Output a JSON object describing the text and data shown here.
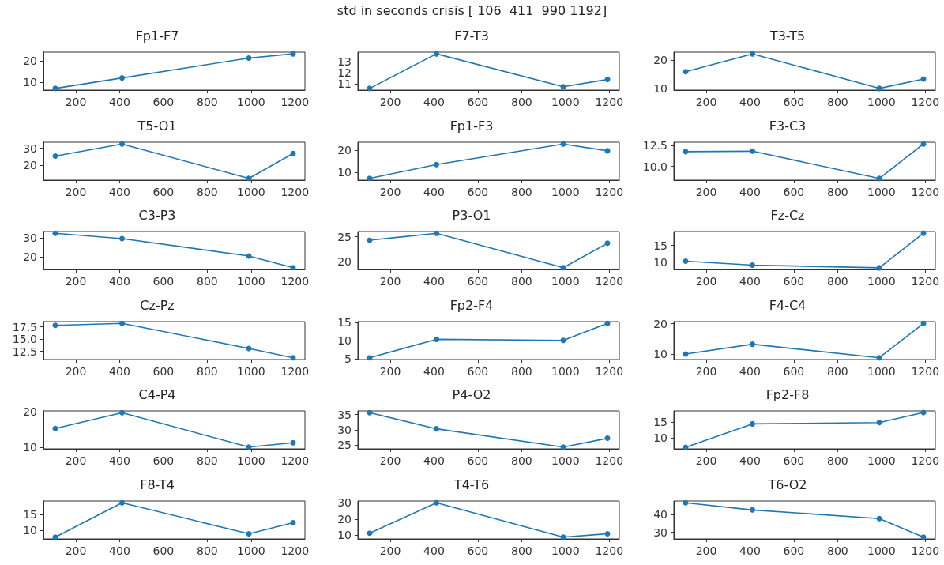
{
  "chart_data": [
    {
      "type": "line",
      "title": "Fp1-F7",
      "annotations": [
        "std in seconds crisis [ 106  411  990 1192]"
      ],
      "x": [
        106,
        411,
        990,
        1192
      ],
      "series": [
        {
          "color": "#1f77b4",
          "values": [
            7,
            12,
            21.5,
            23.5
          ]
        }
      ],
      "xlim": [
        52,
        1246
      ],
      "xticks": [
        200,
        400,
        600,
        800,
        1000,
        1200
      ],
      "ylim": [
        6.2,
        24.3
      ],
      "yticks": [
        10,
        20
      ],
      "marker": "circle",
      "grid": false
    },
    {
      "type": "line",
      "title": "F7-T3",
      "x": [
        106,
        411,
        990,
        1192
      ],
      "series": [
        {
          "color": "#1f77b4",
          "values": [
            10.6,
            13.7,
            10.75,
            11.4
          ]
        }
      ],
      "xlim": [
        52,
        1246
      ],
      "xticks": [
        200,
        400,
        600,
        800,
        1000,
        1200
      ],
      "ylim": [
        10.45,
        13.85
      ],
      "yticks": [
        11,
        12,
        13
      ],
      "marker": "circle",
      "grid": false
    },
    {
      "type": "line",
      "title": "T3-T5",
      "x": [
        106,
        411,
        990,
        1192
      ],
      "series": [
        {
          "color": "#1f77b4",
          "values": [
            16,
            22.3,
            10.1,
            13.4
          ]
        }
      ],
      "xlim": [
        52,
        1246
      ],
      "xticks": [
        200,
        400,
        600,
        800,
        1000,
        1200
      ],
      "ylim": [
        9.5,
        22.9
      ],
      "yticks": [
        10,
        20
      ],
      "marker": "circle",
      "grid": false
    },
    {
      "type": "line",
      "title": "T5-O1",
      "x": [
        106,
        411,
        990,
        1192
      ],
      "series": [
        {
          "color": "#1f77b4",
          "values": [
            25.5,
            32.5,
            12.5,
            27
          ]
        }
      ],
      "xlim": [
        52,
        1246
      ],
      "xticks": [
        200,
        400,
        600,
        800,
        1000,
        1200
      ],
      "ylim": [
        11.5,
        33.5
      ],
      "yticks": [
        20,
        30
      ],
      "marker": "circle",
      "grid": false
    },
    {
      "type": "line",
      "title": "Fp1-F3",
      "x": [
        106,
        411,
        990,
        1192
      ],
      "series": [
        {
          "color": "#1f77b4",
          "values": [
            7.2,
            13.5,
            22.8,
            19.7
          ]
        }
      ],
      "xlim": [
        52,
        1246
      ],
      "xticks": [
        200,
        400,
        600,
        800,
        1000,
        1200
      ],
      "ylim": [
        6.4,
        23.6
      ],
      "yticks": [
        10,
        20
      ],
      "marker": "circle",
      "grid": false
    },
    {
      "type": "line",
      "title": "F3-C3",
      "x": [
        106,
        411,
        990,
        1192
      ],
      "series": [
        {
          "color": "#1f77b4",
          "values": [
            11.75,
            11.8,
            8.6,
            12.65
          ]
        }
      ],
      "xlim": [
        52,
        1246
      ],
      "xticks": [
        200,
        400,
        600,
        800,
        1000,
        1200
      ],
      "ylim": [
        8.4,
        12.85
      ],
      "yticks": [
        {
          "value": 10,
          "label": "10.0"
        },
        {
          "value": 12.5,
          "label": "12.5"
        }
      ],
      "marker": "circle",
      "grid": false
    },
    {
      "type": "line",
      "title": "C3-P3",
      "x": [
        106,
        411,
        990,
        1192
      ],
      "series": [
        {
          "color": "#1f77b4",
          "values": [
            32.5,
            29.7,
            20.6,
            14.5
          ]
        }
      ],
      "xlim": [
        52,
        1246
      ],
      "xticks": [
        200,
        400,
        600,
        800,
        1000,
        1200
      ],
      "ylim": [
        13.6,
        33.4
      ],
      "yticks": [
        20,
        30
      ],
      "marker": "circle",
      "grid": false
    },
    {
      "type": "line",
      "title": "P3-O1",
      "x": [
        106,
        411,
        990,
        1192
      ],
      "series": [
        {
          "color": "#1f77b4",
          "values": [
            24.3,
            25.7,
            18.8,
            23.7
          ]
        }
      ],
      "xlim": [
        52,
        1246
      ],
      "xticks": [
        200,
        400,
        600,
        800,
        1000,
        1200
      ],
      "ylim": [
        18.45,
        26.05
      ],
      "yticks": [
        20,
        25
      ],
      "marker": "circle",
      "grid": false
    },
    {
      "type": "line",
      "title": "Fz-Cz",
      "x": [
        106,
        411,
        990,
        1192
      ],
      "series": [
        {
          "color": "#1f77b4",
          "values": [
            10.3,
            9.1,
            8.3,
            18.7
          ]
        }
      ],
      "xlim": [
        52,
        1246
      ],
      "xticks": [
        200,
        400,
        600,
        800,
        1000,
        1200
      ],
      "ylim": [
        7.8,
        19.2
      ],
      "yticks": [
        10,
        15
      ],
      "marker": "circle",
      "grid": false
    },
    {
      "type": "line",
      "title": "Cz-Pz",
      "x": [
        106,
        411,
        990,
        1192
      ],
      "series": [
        {
          "color": "#1f77b4",
          "values": [
            17.8,
            18.2,
            13.1,
            11.2
          ]
        }
      ],
      "xlim": [
        52,
        1246
      ],
      "xticks": [
        200,
        400,
        600,
        800,
        1000,
        1200
      ],
      "ylim": [
        10.85,
        18.55
      ],
      "yticks": [
        {
          "value": 12.5,
          "label": "12.5"
        },
        {
          "value": 15,
          "label": "15.0"
        },
        {
          "value": 17.5,
          "label": "17.5"
        }
      ],
      "marker": "circle",
      "grid": false
    },
    {
      "type": "line",
      "title": "Fp2-F4",
      "x": [
        106,
        411,
        990,
        1192
      ],
      "series": [
        {
          "color": "#1f77b4",
          "values": [
            5.3,
            10.4,
            10.1,
            14.8
          ]
        }
      ],
      "xlim": [
        52,
        1246
      ],
      "xticks": [
        200,
        400,
        600,
        800,
        1000,
        1200
      ],
      "ylim": [
        4.8,
        15.3
      ],
      "yticks": [
        5,
        10,
        15
      ],
      "marker": "circle",
      "grid": false
    },
    {
      "type": "line",
      "title": "F4-C4",
      "x": [
        106,
        411,
        990,
        1192
      ],
      "series": [
        {
          "color": "#1f77b4",
          "values": [
            10.1,
            13.3,
            8.9,
            20.1
          ]
        }
      ],
      "xlim": [
        52,
        1246
      ],
      "xticks": [
        200,
        400,
        600,
        800,
        1000,
        1200
      ],
      "ylim": [
        8.3,
        20.7
      ],
      "yticks": [
        10,
        20
      ],
      "marker": "circle",
      "grid": false
    },
    {
      "type": "line",
      "title": "C4-P4",
      "x": [
        106,
        411,
        990,
        1192
      ],
      "series": [
        {
          "color": "#1f77b4",
          "values": [
            15.3,
            19.7,
            10.1,
            11.3
          ]
        }
      ],
      "xlim": [
        52,
        1246
      ],
      "xticks": [
        200,
        400,
        600,
        800,
        1000,
        1200
      ],
      "ylim": [
        9.6,
        20.2
      ],
      "yticks": [
        10,
        20
      ],
      "marker": "circle",
      "grid": false
    },
    {
      "type": "line",
      "title": "P4-O2",
      "x": [
        106,
        411,
        990,
        1192
      ],
      "series": [
        {
          "color": "#1f77b4",
          "values": [
            35.6,
            30.3,
            24.3,
            27.2
          ]
        }
      ],
      "xlim": [
        52,
        1246
      ],
      "xticks": [
        200,
        400,
        600,
        800,
        1000,
        1200
      ],
      "ylim": [
        23.7,
        36.2
      ],
      "yticks": [
        25,
        30,
        35
      ],
      "marker": "circle",
      "grid": false
    },
    {
      "type": "line",
      "title": "Fp2-F8",
      "x": [
        106,
        411,
        990,
        1192
      ],
      "series": [
        {
          "color": "#1f77b4",
          "values": [
            7.2,
            14.4,
            14.8,
            17.9
          ]
        }
      ],
      "xlim": [
        52,
        1246
      ],
      "xticks": [
        200,
        400,
        600,
        800,
        1000,
        1200
      ],
      "ylim": [
        6.7,
        18.4
      ],
      "yticks": [
        10,
        15
      ],
      "marker": "circle",
      "grid": false
    },
    {
      "type": "line",
      "title": "F8-T4",
      "x": [
        106,
        411,
        990,
        1192
      ],
      "series": [
        {
          "color": "#1f77b4",
          "values": [
            7.7,
            18.9,
            8.8,
            12.4
          ]
        }
      ],
      "xlim": [
        52,
        1246
      ],
      "xticks": [
        200,
        400,
        600,
        800,
        1000,
        1200
      ],
      "ylim": [
        7.1,
        19.5
      ],
      "yticks": [
        10,
        15
      ],
      "marker": "circle",
      "grid": false
    },
    {
      "type": "line",
      "title": "T4-T6",
      "x": [
        106,
        411,
        990,
        1192
      ],
      "series": [
        {
          "color": "#1f77b4",
          "values": [
            11.2,
            30.0,
            8.8,
            10.9
          ]
        }
      ],
      "xlim": [
        52,
        1246
      ],
      "xticks": [
        200,
        400,
        600,
        800,
        1000,
        1200
      ],
      "ylim": [
        7.7,
        31.1
      ],
      "yticks": [
        10,
        20,
        30
      ],
      "marker": "circle",
      "grid": false
    },
    {
      "type": "line",
      "title": "T6-O2",
      "x": [
        106,
        411,
        990,
        1192
      ],
      "series": [
        {
          "color": "#1f77b4",
          "values": [
            46.8,
            42.7,
            37.8,
            27.2
          ]
        }
      ],
      "xlim": [
        52,
        1246
      ],
      "xticks": [
        200,
        400,
        600,
        800,
        1000,
        1200
      ],
      "ylim": [
        26.2,
        47.8
      ],
      "yticks": [
        30,
        40
      ],
      "marker": "circle",
      "grid": false
    }
  ]
}
